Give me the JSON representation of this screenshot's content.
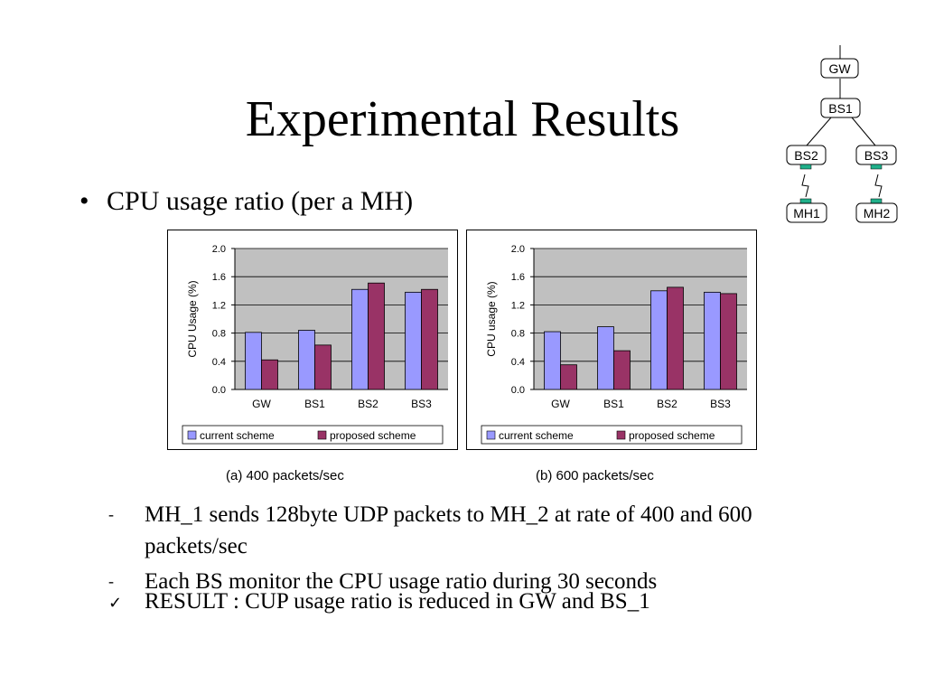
{
  "slide": {
    "title": "Experimental Results",
    "bullet": "CPU usage ratio (per a MH)",
    "bullet_mark": "•",
    "subpoints": [
      {
        "mark": "-",
        "text": "MH_1 sends 128byte UDP packets to MH_2 at rate of 400 and 600 packets/sec"
      },
      {
        "mark": "-",
        "text": "Each BS monitor the CPU usage ratio during 30 seconds"
      }
    ],
    "result": {
      "mark": "✓",
      "text": "RESULT : CUP usage ratio is reduced in GW and BS_1"
    }
  },
  "topology": {
    "nodes": [
      "GW",
      "BS1",
      "BS2",
      "BS3",
      "MH1",
      "MH2"
    ]
  },
  "colors": {
    "current": "#9999ff",
    "proposed": "#993366",
    "plot_bg": "#c0c0c0"
  },
  "chart_data": [
    {
      "type": "bar",
      "caption": "(a) 400 packets/sec",
      "categories": [
        "GW",
        "BS1",
        "BS2",
        "BS3"
      ],
      "series": [
        {
          "name": "current scheme",
          "values": [
            0.81,
            0.84,
            1.42,
            1.38
          ]
        },
        {
          "name": "proposed scheme",
          "values": [
            0.42,
            0.63,
            1.51,
            1.42
          ]
        }
      ],
      "ylabel": "CPU Usage (%)",
      "ylim": [
        0,
        2.0
      ],
      "yticks": [
        "0.0",
        "0.4",
        "0.8",
        "1.2",
        "1.6",
        "2.0"
      ],
      "legend": "bottom",
      "grid": true
    },
    {
      "type": "bar",
      "caption": "(b) 600 packets/sec",
      "categories": [
        "GW",
        "BS1",
        "BS2",
        "BS3"
      ],
      "series": [
        {
          "name": "current scheme",
          "values": [
            0.82,
            0.89,
            1.4,
            1.38
          ]
        },
        {
          "name": "proposed scheme",
          "values": [
            0.35,
            0.55,
            1.45,
            1.36
          ]
        }
      ],
      "ylabel": "CPU usage (%)",
      "ylim": [
        0,
        2.0
      ],
      "yticks": [
        "0.0",
        "0.4",
        "0.8",
        "1.2",
        "1.6",
        "2.0"
      ],
      "legend": "bottom",
      "grid": true
    }
  ]
}
